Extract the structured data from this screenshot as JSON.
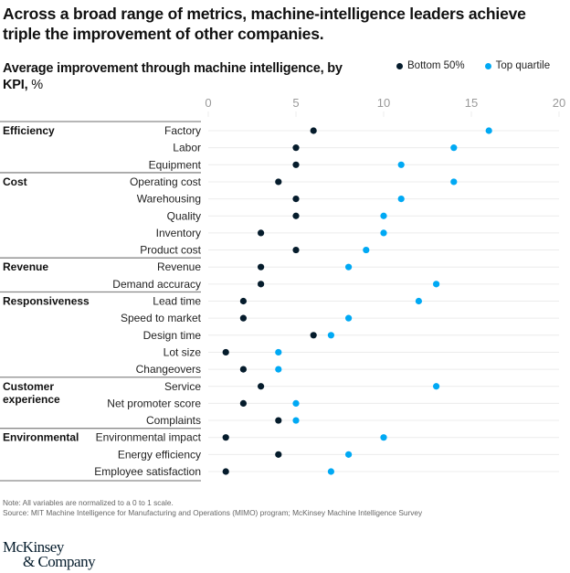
{
  "header": {
    "title": "Across a broad range of metrics, machine-intelligence leaders achieve triple the improvement of other companies.",
    "subtitle_bold": "Average improvement through machine intelligence, by KPI,",
    "subtitle_unit": " %"
  },
  "legend": [
    {
      "label": "Bottom 50%",
      "color": "#051c2c"
    },
    {
      "label": "Top quartile",
      "color": "#00a9f4"
    }
  ],
  "footer": {
    "note": "Note: All variables are normalized to a 0 to 1 scale.",
    "source": "Source: MIT Machine Intelligence for Manufacturing and Operations (MIMO) program; McKinsey Machine Intelligence Survey",
    "logo_line1": "McKinsey",
    "logo_line2": "& Company"
  },
  "chart_data": {
    "type": "scatter",
    "subtype": "dot-plot",
    "title": "Average improvement through machine intelligence, by KPI, %",
    "xlabel": "",
    "ylabel": "",
    "xlim": [
      0,
      20
    ],
    "xticks": [
      0,
      5,
      10,
      15,
      20
    ],
    "grid": true,
    "legend_position": "top-right",
    "groups": [
      {
        "name": "Efficiency",
        "categories": [
          "Factory",
          "Labor",
          "Equipment"
        ]
      },
      {
        "name": "Cost",
        "categories": [
          "Operating cost",
          "Warehousing",
          "Quality",
          "Inventory",
          "Product cost"
        ]
      },
      {
        "name": "Revenue",
        "categories": [
          "Revenue",
          "Demand accuracy"
        ]
      },
      {
        "name": "Responsiveness",
        "categories": [
          "Lead time",
          "Speed to market",
          "Design time",
          "Lot size",
          "Changeovers"
        ]
      },
      {
        "name": "Customer experience",
        "categories": [
          "Service",
          "Net promoter score",
          "Complaints"
        ]
      },
      {
        "name": "Environmental",
        "categories": [
          "Environmental impact",
          "Energy efficiency",
          "Employee satisfaction"
        ]
      }
    ],
    "categories": [
      "Factory",
      "Labor",
      "Equipment",
      "Operating cost",
      "Warehousing",
      "Quality",
      "Inventory",
      "Product cost",
      "Revenue",
      "Demand accuracy",
      "Lead time",
      "Speed to market",
      "Design time",
      "Lot size",
      "Changeovers",
      "Service",
      "Net promoter score",
      "Complaints",
      "Environmental impact",
      "Energy efficiency",
      "Employee satisfaction"
    ],
    "series": [
      {
        "name": "Bottom 50%",
        "color": "#051c2c",
        "values": [
          6,
          5,
          5,
          4,
          5,
          5,
          3,
          5,
          3,
          3,
          2,
          2,
          6,
          1,
          2,
          3,
          2,
          4,
          1,
          4,
          1
        ]
      },
      {
        "name": "Top quartile",
        "color": "#00a9f4",
        "values": [
          16,
          14,
          11,
          14,
          11,
          10,
          10,
          9,
          8,
          13,
          12,
          8,
          7,
          4,
          4,
          13,
          5,
          5,
          10,
          8,
          7
        ]
      }
    ]
  }
}
